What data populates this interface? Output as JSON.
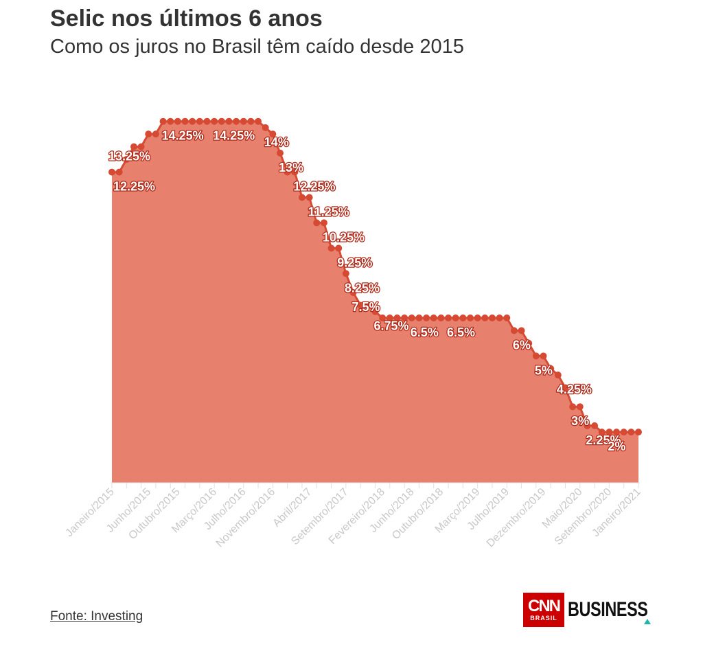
{
  "header": {
    "title": "Selic nos últimos 6 anos",
    "subtitle": "Como os juros no Brasil têm caído desde 2015"
  },
  "footer": {
    "source": "Fonte: Investing",
    "brand_top": "CNN",
    "brand_sub": "BRASIL",
    "brand_name": "BUSINESS"
  },
  "colors": {
    "area": "#e8806e",
    "line": "#d64a33",
    "point": "#d64a33",
    "label_outline": "#b02a1a",
    "tick_text": "#c8c8c8",
    "logo_red": "#cc0000",
    "logo_accent": "#1fb5a8"
  },
  "chart_data": {
    "type": "area",
    "title": "Selic nos últimos 6 anos",
    "subtitle": "Como os juros no Brasil têm caído desde 2015",
    "xlabel": "",
    "ylabel": "",
    "ylim": [
      0,
      15
    ],
    "grid": false,
    "start_month": "Janeiro/2015",
    "x_ticks": [
      "Janeiro/2015",
      "Junho/2015",
      "Outubro/2015",
      "Março/2016",
      "Julho/2016",
      "Novembro/2016",
      "Abril/2017",
      "Setembro/2017",
      "Fevereiro/2018",
      "Junho/2018",
      "Outubro/2018",
      "Março/2019",
      "Julho/2019",
      "Dezembro/2019",
      "Maio/2020",
      "Setembro/2020",
      "Janeiro/2021"
    ],
    "x_tick_index": [
      0,
      5,
      9,
      14,
      18,
      22,
      27,
      32,
      37,
      41,
      45,
      50,
      54,
      59,
      64,
      68,
      72
    ],
    "values": [
      12.25,
      12.25,
      12.75,
      13.25,
      13.25,
      13.75,
      13.75,
      14.25,
      14.25,
      14.25,
      14.25,
      14.25,
      14.25,
      14.25,
      14.25,
      14.25,
      14.25,
      14.25,
      14.25,
      14.25,
      14.25,
      14.0,
      13.75,
      13.0,
      12.25,
      12.25,
      11.25,
      11.25,
      10.25,
      10.25,
      9.25,
      9.25,
      8.25,
      7.5,
      7.0,
      7.0,
      6.75,
      6.5,
      6.5,
      6.5,
      6.5,
      6.5,
      6.5,
      6.5,
      6.5,
      6.5,
      6.5,
      6.5,
      6.5,
      6.5,
      6.5,
      6.5,
      6.5,
      6.5,
      6.5,
      6.0,
      6.0,
      5.5,
      5.0,
      5.0,
      4.5,
      4.25,
      3.75,
      3.0,
      3.0,
      2.25,
      2.25,
      2.0,
      2.0,
      2.0,
      2.0,
      2.0,
      2.0
    ],
    "data_labels": [
      {
        "i": 0,
        "text": "12.25%"
      },
      {
        "i": 3,
        "text": "13.25%"
      },
      {
        "i": 7,
        "text": "14.25%"
      },
      {
        "i": 14,
        "text": "14.25%"
      },
      {
        "i": 21,
        "text": "14%"
      },
      {
        "i": 23,
        "text": "13%"
      },
      {
        "i": 25,
        "text": "12.25%"
      },
      {
        "i": 27,
        "text": "11.25%"
      },
      {
        "i": 29,
        "text": "10.25%"
      },
      {
        "i": 31,
        "text": "9.25%"
      },
      {
        "i": 32,
        "text": "8.25%"
      },
      {
        "i": 33,
        "text": "7.5%"
      },
      {
        "i": 36,
        "text": "6.75%"
      },
      {
        "i": 41,
        "text": "6.5%"
      },
      {
        "i": 46,
        "text": "6.5%"
      },
      {
        "i": 55,
        "text": "6%"
      },
      {
        "i": 58,
        "text": "5%"
      },
      {
        "i": 61,
        "text": "4.25%"
      },
      {
        "i": 63,
        "text": "3%"
      },
      {
        "i": 65,
        "text": "2.25%"
      },
      {
        "i": 68,
        "text": "2%"
      }
    ]
  }
}
